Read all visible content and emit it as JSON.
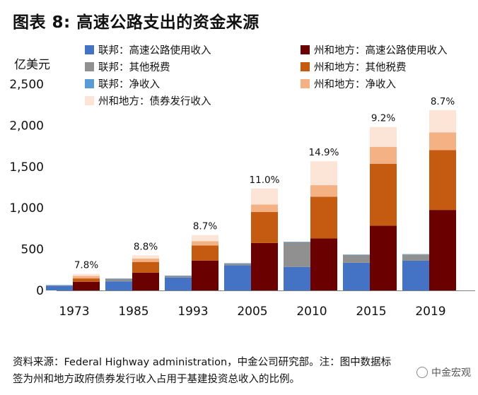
{
  "figure_label": "图表 8:",
  "title": "高速公路支出的资金来源",
  "unit_label": "亿美元",
  "source_line1": "资料来源：Federal Highway administration，中金公司研究部。注：图中数据标",
  "source_line2": "签为州和地方政府债券发行收入占用于基建投资总收入的比例。",
  "watermark": "中金宏观",
  "colors": {
    "fed_fuel": "#4472c4",
    "fed_other": "#909090",
    "fed_net": "#5b9bd5",
    "state_fuel": "#6b0000",
    "state_other": "#c55a11",
    "state_net": "#f4b183",
    "state_bond": "#fce4d6"
  },
  "chart_data": {
    "type": "bar",
    "stacked": true,
    "ylim": [
      0,
      2500
    ],
    "yticks": [
      "0",
      "500",
      "1,000",
      "1,500",
      "2,000",
      "2,500"
    ],
    "ytick_values": [
      0,
      500,
      1000,
      1500,
      2000,
      2500
    ],
    "x_tick_labels": [
      "1973",
      "1985",
      "1993",
      "2005",
      "2010",
      "2015",
      "2019"
    ],
    "legend": [
      {
        "key": "fed_fuel",
        "label": "联邦：高速公路使用收入"
      },
      {
        "key": "state_fuel",
        "label": "州和地方：高速公路使用收入"
      },
      {
        "key": "fed_other",
        "label": "联邦：其他税费"
      },
      {
        "key": "state_other",
        "label": "州和地方：其他税费"
      },
      {
        "key": "fed_net",
        "label": "联邦：净收入"
      },
      {
        "key": "state_net",
        "label": "州和地方：净收入"
      },
      {
        "key": "state_bond",
        "label": "州和地方：债券发行收入"
      }
    ],
    "groups": [
      {
        "label": "1973",
        "federal": {
          "fed_fuel": 55,
          "fed_other": 5,
          "fed_net": 5
        },
        "state": {
          "state_fuel": 105,
          "state_other": 40,
          "state_net": 30,
          "state_bond": 25
        },
        "annotation": "7.8%"
      },
      {
        "label": "1985",
        "federal": {
          "fed_fuel": 110,
          "fed_other": 30,
          "fed_net": 5
        },
        "state": {
          "state_fuel": 215,
          "state_other": 130,
          "state_net": 40,
          "state_bond": 40
        },
        "annotation": "8.8%"
      },
      {
        "label": "1993",
        "federal": {
          "fed_fuel": 155,
          "fed_other": 20,
          "fed_net": 5
        },
        "state": {
          "state_fuel": 360,
          "state_other": 185,
          "state_net": 50,
          "state_bond": 75
        },
        "annotation": "8.7%"
      },
      {
        "label": "2005",
        "federal": {
          "fed_fuel": 305,
          "fed_other": 20,
          "fed_net": 5
        },
        "state": {
          "state_fuel": 575,
          "state_other": 375,
          "state_net": 90,
          "state_bond": 195
        },
        "annotation": "11.0%"
      },
      {
        "label": "2010",
        "federal": {
          "fed_fuel": 285,
          "fed_other": 300,
          "fed_net": 5
        },
        "state": {
          "state_fuel": 630,
          "state_other": 505,
          "state_net": 140,
          "state_bond": 290
        },
        "annotation": "14.9%"
      },
      {
        "label": "2015",
        "federal": {
          "fed_fuel": 335,
          "fed_other": 95,
          "fed_net": 5
        },
        "state": {
          "state_fuel": 785,
          "state_other": 750,
          "state_net": 205,
          "state_bond": 240
        },
        "annotation": "9.2%"
      },
      {
        "label": "2019",
        "federal": {
          "fed_fuel": 360,
          "fed_other": 75,
          "fed_net": 5
        },
        "state": {
          "state_fuel": 975,
          "state_other": 725,
          "state_net": 215,
          "state_bond": 270
        },
        "annotation": "8.7%"
      }
    ]
  }
}
